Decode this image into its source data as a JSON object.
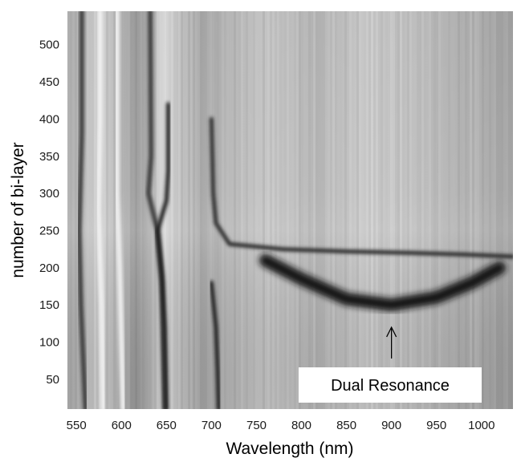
{
  "chart_data": {
    "type": "heatmap",
    "title": "",
    "xlabel": "Wavelength (nm)",
    "ylabel": "number of bi-layer",
    "xlim": [
      540,
      1035
    ],
    "ylim": [
      10,
      545
    ],
    "xticks": [
      550,
      600,
      650,
      700,
      750,
      800,
      850,
      900,
      950,
      1000
    ],
    "yticks": [
      50,
      100,
      150,
      200,
      250,
      300,
      350,
      400,
      450,
      500
    ],
    "colormap": "grayscale",
    "annotation": {
      "text": "Dual Resonance",
      "arrow_to": {
        "x": 900,
        "y": 120
      },
      "arrow_from": {
        "x": 900,
        "y": 78
      }
    },
    "resonance_features": [
      {
        "name": "band-555",
        "points": [
          [
            556,
            545
          ],
          [
            556,
            380
          ],
          [
            553,
            250
          ],
          [
            555,
            150
          ],
          [
            560,
            10
          ]
        ]
      },
      {
        "name": "band-575",
        "points": [
          [
            576,
            545
          ],
          [
            576,
            400
          ],
          [
            574,
            280
          ],
          [
            578,
            150
          ],
          [
            580,
            10
          ]
        ]
      },
      {
        "name": "band-595",
        "points": [
          [
            595,
            545
          ],
          [
            595,
            300
          ],
          [
            598,
            200
          ],
          [
            600,
            100
          ],
          [
            602,
            10
          ]
        ]
      },
      {
        "name": "band-630",
        "points": [
          [
            632,
            545
          ],
          [
            633,
            350
          ],
          [
            630,
            300
          ],
          [
            640,
            250
          ],
          [
            645,
            180
          ],
          [
            648,
            10
          ]
        ]
      },
      {
        "name": "band-650",
        "points": [
          [
            652,
            420
          ],
          [
            652,
            330
          ],
          [
            650,
            290
          ],
          [
            640,
            250
          ],
          [
            645,
            190
          ],
          [
            648,
            120
          ],
          [
            650,
            10
          ]
        ]
      },
      {
        "name": "band-700",
        "points": [
          [
            700,
            400
          ],
          [
            702,
            300
          ],
          [
            705,
            260
          ],
          [
            720,
            232
          ],
          [
            780,
            225
          ],
          [
            850,
            222
          ],
          [
            920,
            220
          ],
          [
            980,
            218
          ],
          [
            1035,
            215
          ]
        ]
      },
      {
        "name": "band-705",
        "points": [
          [
            700,
            180
          ],
          [
            705,
            120
          ],
          [
            707,
            60
          ],
          [
            708,
            10
          ]
        ]
      },
      {
        "name": "dual-resonance",
        "points": [
          [
            760,
            210
          ],
          [
            800,
            185
          ],
          [
            850,
            158
          ],
          [
            900,
            150
          ],
          [
            950,
            160
          ],
          [
            990,
            180
          ],
          [
            1020,
            200
          ]
        ]
      }
    ]
  }
}
